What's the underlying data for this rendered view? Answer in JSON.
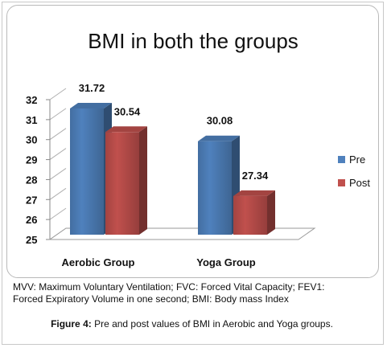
{
  "chart_data": {
    "type": "bar",
    "title": "BMI in both the groups",
    "categories": [
      "Aerobic Group",
      "Yoga Group"
    ],
    "series": [
      {
        "name": "Pre",
        "values": [
          31.72,
          30.08
        ],
        "color": "#4f81bd"
      },
      {
        "name": "Post",
        "values": [
          30.54,
          27.34
        ],
        "color": "#c0504d"
      }
    ],
    "data_labels": [
      "31.72",
      "30.54",
      "30.08",
      "27.34"
    ],
    "ylim": [
      25,
      32
    ],
    "yticks": [
      "25",
      "26",
      "27",
      "28",
      "29",
      "30",
      "31",
      "32"
    ],
    "xlabel": "",
    "ylabel": "",
    "grid": false,
    "three_d": true,
    "legend_position": "right"
  },
  "footnote": {
    "line1": "MVV: Maximum Voluntary Ventilation; FVC: Forced Vital Capacity; FEV1:",
    "line2": "Forced Expiratory Volume in one second; BMI: Body mass Index"
  },
  "caption": {
    "label": "Figure 4:",
    "text": " Pre and post values of BMI in Aerobic and Yoga groups."
  }
}
